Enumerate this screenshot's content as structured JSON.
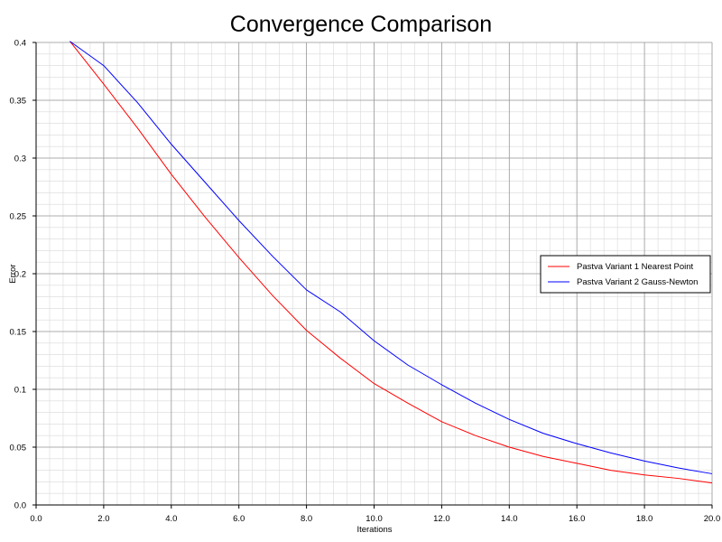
{
  "chart_data": {
    "type": "line",
    "title": "Convergence Comparison",
    "xlabel": "Iterations",
    "ylabel": "Error",
    "xlim": [
      0,
      20
    ],
    "ylim": [
      0,
      0.4
    ],
    "x_ticks": [
      "0.0",
      "2.0",
      "4.0",
      "6.0",
      "8.0",
      "10.0",
      "12.0",
      "14.0",
      "16.0",
      "18.0",
      "20.0"
    ],
    "y_ticks": [
      "0.0",
      "0.05",
      "0.1",
      "0.15",
      "0.2",
      "0.25",
      "0.3",
      "0.35",
      "0.4"
    ],
    "grid": true,
    "legend_position": "right",
    "series": [
      {
        "name": "Pastva Variant 1 Nearest Point",
        "color": "#ff0000",
        "x": [
          1,
          2,
          3,
          4,
          5,
          6,
          7,
          8,
          9,
          10,
          11,
          12,
          13,
          14,
          15,
          16,
          17,
          18,
          19,
          20
        ],
        "y": [
          0.401,
          0.364,
          0.326,
          0.286,
          0.249,
          0.214,
          0.181,
          0.151,
          0.127,
          0.105,
          0.088,
          0.072,
          0.06,
          0.05,
          0.042,
          0.036,
          0.03,
          0.026,
          0.023,
          0.019
        ]
      },
      {
        "name": "Pastva Variant 2 Gauss-Newton",
        "color": "#0000ff",
        "x": [
          1,
          2,
          3,
          4,
          5,
          6,
          7,
          8,
          9,
          10,
          11,
          12,
          13,
          14,
          15,
          16,
          17,
          18,
          19,
          20
        ],
        "y": [
          0.401,
          0.38,
          0.348,
          0.312,
          0.279,
          0.246,
          0.215,
          0.186,
          0.167,
          0.142,
          0.121,
          0.104,
          0.088,
          0.074,
          0.062,
          0.053,
          0.045,
          0.038,
          0.032,
          0.027
        ]
      }
    ]
  }
}
